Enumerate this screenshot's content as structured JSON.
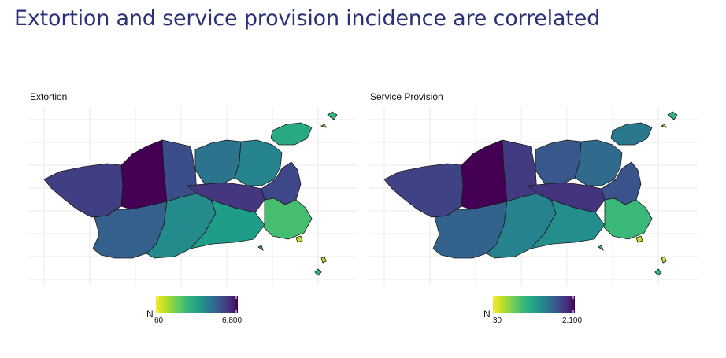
{
  "slide_title": "Extortion and service provision incidence are correlated",
  "colors": {
    "title": "#2b3174",
    "viridis_low": "#fde725",
    "viridis_high": "#440154",
    "grid": "#ebebeb"
  },
  "maps": [
    {
      "title": "Extortion",
      "legend": {
        "title": "N",
        "min_label": "60",
        "max_label": "6,800",
        "min": 60,
        "max": 6800
      },
      "regions": [
        {
          "id": "far-west",
          "value": 2800
        },
        {
          "id": "west-center",
          "value": 6800
        },
        {
          "id": "center-strip",
          "value": 2200
        },
        {
          "id": "southwest",
          "value": 1600
        },
        {
          "id": "south-center",
          "value": 700
        },
        {
          "id": "coast-south",
          "value": 500
        },
        {
          "id": "central-band",
          "value": 3200
        },
        {
          "id": "north-block",
          "value": 1100
        },
        {
          "id": "north-east",
          "value": 800
        },
        {
          "id": "harbor",
          "value": 2400
        },
        {
          "id": "downtown",
          "value": 250
        },
        {
          "id": "island",
          "value": 400
        }
      ]
    },
    {
      "title": "Service Provision",
      "legend": {
        "title": "N",
        "min_label": "30",
        "max_label": "2,100",
        "min": 30,
        "max": 2100
      },
      "regions": [
        {
          "id": "far-west",
          "value": 900
        },
        {
          "id": "west-center",
          "value": 2100
        },
        {
          "id": "center-strip",
          "value": 1000
        },
        {
          "id": "southwest",
          "value": 550
        },
        {
          "id": "south-center",
          "value": 320
        },
        {
          "id": "coast-south",
          "value": 260
        },
        {
          "id": "central-band",
          "value": 1100
        },
        {
          "id": "north-block",
          "value": 650
        },
        {
          "id": "north-east",
          "value": 480
        },
        {
          "id": "harbor",
          "value": 700
        },
        {
          "id": "downtown",
          "value": 120
        },
        {
          "id": "island",
          "value": 380
        }
      ]
    }
  ]
}
